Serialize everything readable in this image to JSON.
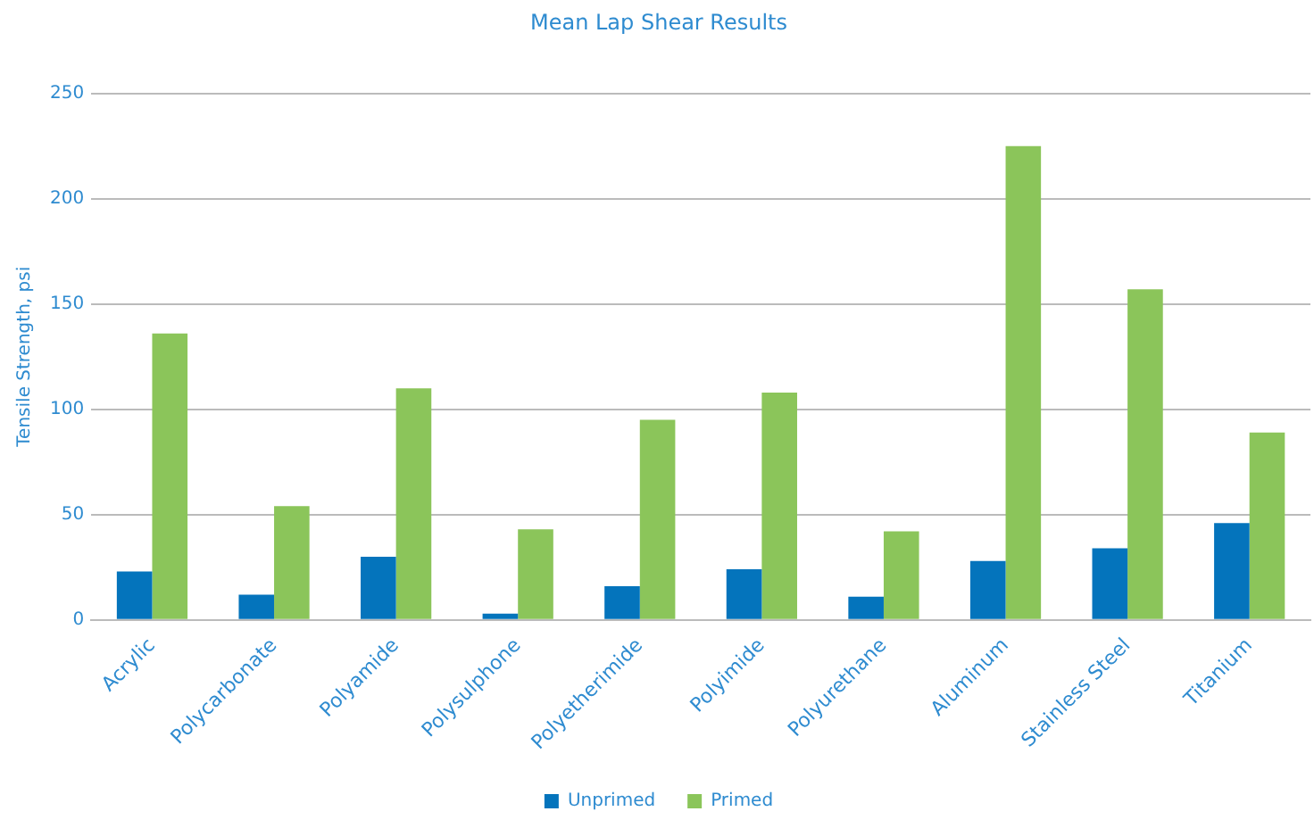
{
  "chart_data": {
    "type": "bar",
    "title": "Mean Lap Shear Results",
    "ylabel": "Tensile Strength, psi",
    "categories": [
      "Acrylic",
      "Polycarbonate",
      "Polyamide",
      "Polysulphone",
      "Polyetherimide",
      "Polyimide",
      "Polyurethane",
      "Aluminum",
      "Stainless Steel",
      "Titanium"
    ],
    "series": [
      {
        "name": "Unprimed",
        "color": "#0474bc",
        "values": [
          23,
          12,
          30,
          3,
          16,
          24,
          11,
          28,
          34,
          46
        ]
      },
      {
        "name": "Primed",
        "color": "#8bc55a",
        "values": [
          136,
          54,
          110,
          43,
          95,
          108,
          42,
          225,
          157,
          89
        ]
      }
    ],
    "ylim": [
      0,
      250
    ],
    "yticks": [
      0,
      50,
      100,
      150,
      200,
      250
    ],
    "grid": "y",
    "legend": "bottom"
  }
}
